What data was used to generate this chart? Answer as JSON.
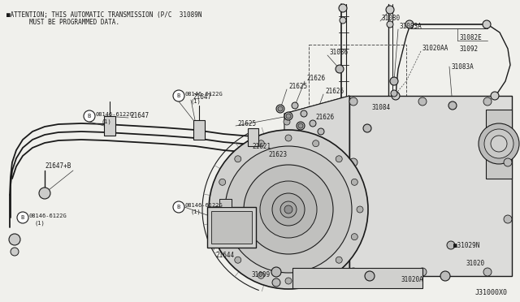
{
  "bg_color": "#f0f0ec",
  "attention_line1": "■ATTENTION; THIS AUTOMATIC TRANSMISSION (P/C  31089N",
  "attention_line2": "MUST BE PROGRAMMED DATA.",
  "diagram_code": "J31000X0",
  "figsize": [
    6.4,
    3.72
  ],
  "dpi": 100
}
